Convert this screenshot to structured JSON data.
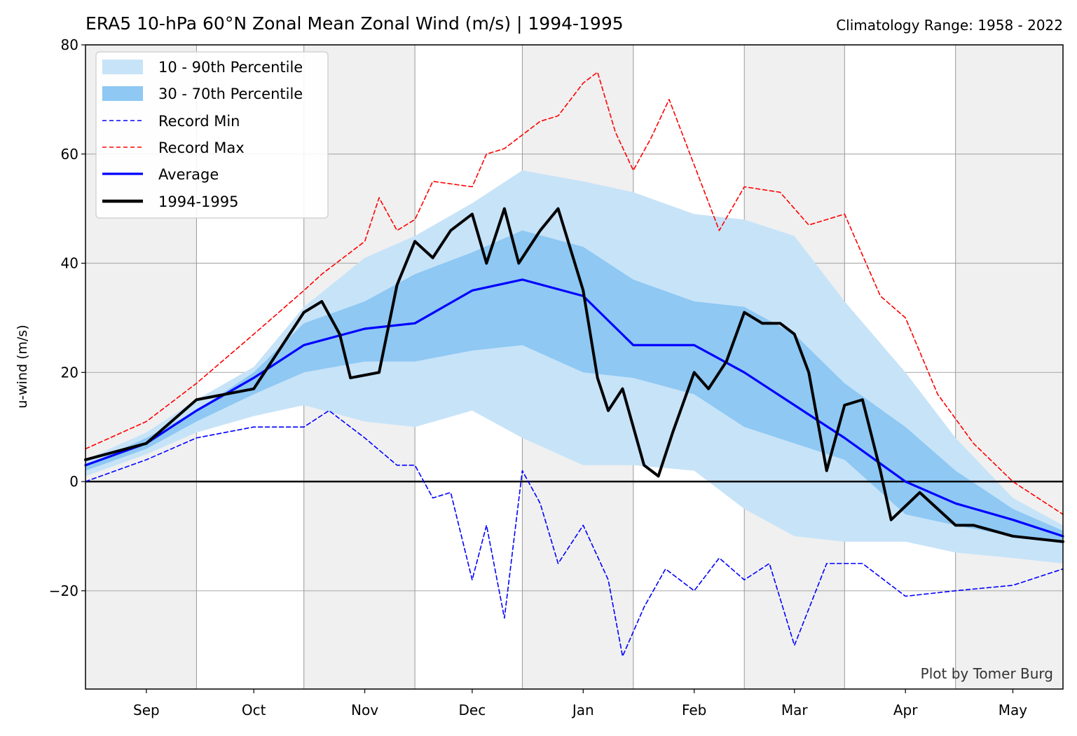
{
  "header": {
    "title": "ERA5 10-hPa 60°N Zonal Mean Zonal Wind (m/s) | 1994-1995",
    "subtitle": "Climatology Range: 1958 - 2022"
  },
  "credit": "Plot by Tomer Burg",
  "colors": {
    "band_outer": "#c7e3f8",
    "band_inner": "#8ec8f3",
    "record_min": "#0000ff",
    "record_max": "#ff0000",
    "average": "#0000ff",
    "season": "#000000",
    "shade": "#f0f0f0",
    "grid": "#b0b0b0"
  },
  "chart_data": {
    "type": "line",
    "xlabel": "",
    "ylabel": "u-wind (m/s)",
    "ylim": [
      -38,
      80
    ],
    "yticks": [
      -20,
      0,
      20,
      40,
      60,
      80
    ],
    "xlim": [
      "1994-08-15",
      "1995-05-15"
    ],
    "xtick_labels": [
      {
        "label": "Sep",
        "date": "1994-09-01"
      },
      {
        "label": "Oct",
        "date": "1994-10-01"
      },
      {
        "label": "Nov",
        "date": "1994-11-01"
      },
      {
        "label": "Dec",
        "date": "1994-12-01"
      },
      {
        "label": "Jan",
        "date": "1995-01-01"
      },
      {
        "label": "Feb",
        "date": "1995-02-01"
      },
      {
        "label": "Mar",
        "date": "1995-03-01"
      },
      {
        "label": "Apr",
        "date": "1995-04-01"
      },
      {
        "label": "May",
        "date": "1995-05-01"
      }
    ],
    "shaded_months": [
      [
        "1994-08-15",
        "1994-09-15"
      ],
      [
        "1994-10-15",
        "1994-11-15"
      ],
      [
        "1994-12-15",
        "1995-01-15"
      ],
      [
        "1995-02-15",
        "1995-03-15"
      ],
      [
        "1995-04-15",
        "1995-05-15"
      ]
    ],
    "grid": true,
    "legend": {
      "position": "top-left",
      "entries": [
        {
          "label": "10 - 90th Percentile",
          "style": "band_outer"
        },
        {
          "label": "30 - 70th Percentile",
          "style": "band_inner"
        },
        {
          "label": "Record Min",
          "style": "record_min"
        },
        {
          "label": "Record Max",
          "style": "record_max"
        },
        {
          "label": "Average",
          "style": "average"
        },
        {
          "label": "1994-1995",
          "style": "season"
        }
      ]
    },
    "bands": [
      {
        "name": "10 - 90th Percentile",
        "x": [
          "1994-08-15",
          "1994-09-01",
          "1994-09-15",
          "1994-10-01",
          "1994-10-15",
          "1994-11-01",
          "1994-11-15",
          "1994-12-01",
          "1994-12-15",
          "1995-01-01",
          "1995-01-15",
          "1995-02-01",
          "1995-02-15",
          "1995-03-01",
          "1995-03-15",
          "1995-04-01",
          "1995-04-15",
          "1995-05-01",
          "1995-05-15"
        ],
        "low": [
          1,
          5,
          9,
          12,
          14,
          11,
          10,
          13,
          8,
          3,
          3,
          2,
          -5,
          -10,
          -11,
          -11,
          -13,
          -14,
          -15
        ],
        "high": [
          4,
          9,
          15,
          21,
          32,
          41,
          45,
          51,
          57,
          55,
          53,
          49,
          48,
          45,
          33,
          20,
          8,
          -3,
          -8
        ]
      },
      {
        "name": "30 - 70th Percentile",
        "x": [
          "1994-08-15",
          "1994-09-01",
          "1994-09-15",
          "1994-10-01",
          "1994-10-15",
          "1994-11-01",
          "1994-11-15",
          "1994-12-01",
          "1994-12-15",
          "1995-01-01",
          "1995-01-15",
          "1995-02-01",
          "1995-02-15",
          "1995-03-01",
          "1995-03-15",
          "1995-04-01",
          "1995-04-15",
          "1995-05-01",
          "1995-05-15"
        ],
        "low": [
          2,
          6,
          11,
          16,
          20,
          22,
          22,
          24,
          25,
          20,
          19,
          16,
          10,
          7,
          4,
          -6,
          -8,
          -10,
          -11
        ],
        "high": [
          3,
          8,
          13,
          20,
          29,
          33,
          38,
          42,
          46,
          43,
          37,
          33,
          32,
          27,
          18,
          10,
          2,
          -5,
          -9
        ]
      }
    ],
    "series": [
      {
        "name": "Record Min",
        "x": [
          "1994-08-15",
          "1994-09-01",
          "1994-09-15",
          "1994-10-01",
          "1994-10-15",
          "1994-10-22",
          "1994-11-01",
          "1994-11-10",
          "1994-11-15",
          "1994-11-20",
          "1994-11-25",
          "1994-12-01",
          "1994-12-05",
          "1994-12-10",
          "1994-12-15",
          "1994-12-20",
          "1994-12-25",
          "1995-01-01",
          "1995-01-08",
          "1995-01-12",
          "1995-01-18",
          "1995-01-24",
          "1995-02-01",
          "1995-02-08",
          "1995-02-15",
          "1995-02-22",
          "1995-03-01",
          "1995-03-10",
          "1995-03-20",
          "1995-04-01",
          "1995-04-15",
          "1995-05-01",
          "1995-05-15"
        ],
        "values": [
          0,
          4,
          8,
          10,
          10,
          13,
          8,
          3,
          3,
          -3,
          -2,
          -18,
          -8,
          -25,
          2,
          -4,
          -15,
          -8,
          -18,
          -32,
          -23,
          -16,
          -20,
          -14,
          -18,
          -15,
          -30,
          -15,
          -15,
          -21,
          -20,
          -19,
          -16
        ]
      },
      {
        "name": "Record Max",
        "x": [
          "1994-08-15",
          "1994-09-01",
          "1994-09-15",
          "1994-10-01",
          "1994-10-15",
          "1994-10-20",
          "1994-11-01",
          "1994-11-05",
          "1994-11-10",
          "1994-11-15",
          "1994-11-20",
          "1994-12-01",
          "1994-12-05",
          "1994-12-10",
          "1994-12-20",
          "1994-12-25",
          "1995-01-01",
          "1995-01-05",
          "1995-01-10",
          "1995-01-15",
          "1995-01-20",
          "1995-01-25",
          "1995-02-01",
          "1995-02-08",
          "1995-02-15",
          "1995-02-25",
          "1995-03-05",
          "1995-03-15",
          "1995-03-25",
          "1995-04-01",
          "1995-04-10",
          "1995-04-20",
          "1995-05-01",
          "1995-05-15"
        ],
        "values": [
          6,
          11,
          18,
          27,
          35,
          38,
          44,
          52,
          46,
          48,
          55,
          54,
          60,
          61,
          66,
          67,
          73,
          75,
          64,
          57,
          63,
          70,
          58,
          46,
          54,
          53,
          47,
          49,
          34,
          30,
          16,
          7,
          0,
          -6
        ]
      },
      {
        "name": "Average",
        "x": [
          "1994-08-15",
          "1994-09-01",
          "1994-09-15",
          "1994-10-01",
          "1994-10-15",
          "1994-11-01",
          "1994-11-15",
          "1994-12-01",
          "1994-12-15",
          "1995-01-01",
          "1995-01-15",
          "1995-02-01",
          "1995-02-15",
          "1995-03-01",
          "1995-03-15",
          "1995-04-01",
          "1995-04-15",
          "1995-05-01",
          "1995-05-15"
        ],
        "values": [
          3,
          7,
          13,
          19,
          25,
          28,
          29,
          35,
          37,
          34,
          25,
          25,
          20,
          14,
          8,
          0,
          -4,
          -7,
          -10
        ]
      },
      {
        "name": "1994-1995",
        "x": [
          "1994-08-15",
          "1994-09-01",
          "1994-09-15",
          "1994-10-01",
          "1994-10-07",
          "1994-10-15",
          "1994-10-20",
          "1994-10-25",
          "1994-10-28",
          "1994-11-05",
          "1994-11-10",
          "1994-11-15",
          "1994-11-20",
          "1994-11-25",
          "1994-12-01",
          "1994-12-05",
          "1994-12-10",
          "1994-12-14",
          "1994-12-20",
          "1994-12-25",
          "1995-01-01",
          "1995-01-05",
          "1995-01-08",
          "1995-01-12",
          "1995-01-18",
          "1995-01-22",
          "1995-01-26",
          "1995-02-01",
          "1995-02-05",
          "1995-02-10",
          "1995-02-15",
          "1995-02-20",
          "1995-02-25",
          "1995-03-01",
          "1995-03-05",
          "1995-03-10",
          "1995-03-15",
          "1995-03-20",
          "1995-03-25",
          "1995-03-28",
          "1995-04-05",
          "1995-04-15",
          "1995-04-20",
          "1995-05-01",
          "1995-05-15"
        ],
        "values": [
          4,
          7,
          15,
          17,
          23,
          31,
          33,
          27,
          19,
          20,
          36,
          44,
          41,
          46,
          49,
          40,
          50,
          40,
          46,
          50,
          35,
          19,
          13,
          17,
          3,
          1,
          9,
          20,
          17,
          22,
          31,
          29,
          29,
          27,
          20,
          2,
          14,
          15,
          2,
          -7,
          -2,
          -8,
          -8,
          -10,
          -11
        ]
      }
    ],
    "reference_line": 0
  }
}
